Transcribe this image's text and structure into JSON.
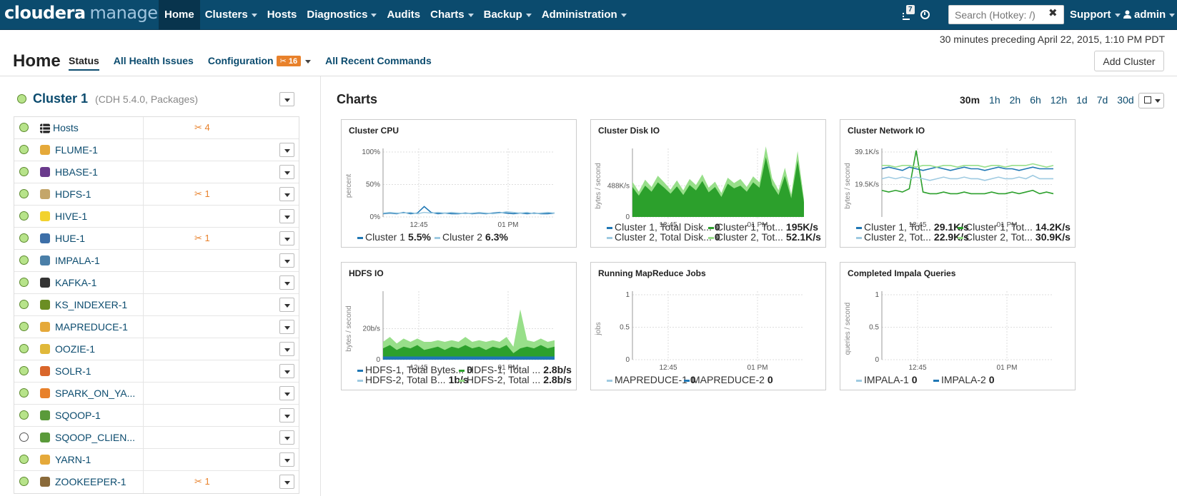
{
  "brand": {
    "part1": "cloudera",
    "part2": "manager"
  },
  "nav": {
    "items": [
      {
        "label": "Home",
        "active": true,
        "caret": false
      },
      {
        "label": "Clusters",
        "caret": true
      },
      {
        "label": "Hosts",
        "caret": false
      },
      {
        "label": "Diagnostics",
        "caret": true
      },
      {
        "label": "Audits",
        "caret": false
      },
      {
        "label": "Charts",
        "caret": true
      },
      {
        "label": "Backup",
        "caret": true
      },
      {
        "label": "Administration",
        "caret": true
      }
    ],
    "notifications_count": "7",
    "search_placeholder": "Search (Hotkey: /)",
    "search_clear": "✖",
    "support_label": "Support",
    "admin_label": "admin"
  },
  "timeline_text": "30 minutes preceding April 22, 2015, 1:10 PM PDT",
  "page": {
    "title": "Home",
    "tabs": {
      "status": "Status",
      "health": "All Health Issues",
      "config": "Configuration",
      "config_badge": "16",
      "commands": "All Recent Commands"
    },
    "add_cluster": "Add Cluster"
  },
  "cluster": {
    "name": "Cluster 1",
    "version": "(CDH 5.4.0, Packages)",
    "hosts": {
      "label": "Hosts",
      "issues": "4"
    },
    "services": [
      {
        "name": "FLUME-1",
        "issues": "",
        "color": "#e5a93a",
        "status": "good"
      },
      {
        "name": "HBASE-1",
        "issues": "",
        "color": "#6a3a8c",
        "status": "good"
      },
      {
        "name": "HDFS-1",
        "issues": "1",
        "color": "#c4a66a",
        "status": "good"
      },
      {
        "name": "HIVE-1",
        "issues": "",
        "color": "#f2d22e",
        "status": "good"
      },
      {
        "name": "HUE-1",
        "issues": "1",
        "color": "#3d6fa8",
        "status": "good"
      },
      {
        "name": "IMPALA-1",
        "issues": "",
        "color": "#4a7fa8",
        "status": "good"
      },
      {
        "name": "KAFKA-1",
        "issues": "",
        "color": "#333333",
        "status": "good"
      },
      {
        "name": "KS_INDEXER-1",
        "issues": "",
        "color": "#6b8e23",
        "status": "good"
      },
      {
        "name": "MAPREDUCE-1",
        "issues": "",
        "color": "#e5a93a",
        "status": "good"
      },
      {
        "name": "OOZIE-1",
        "issues": "",
        "color": "#e0b83a",
        "status": "good"
      },
      {
        "name": "SOLR-1",
        "issues": "",
        "color": "#d9662b",
        "status": "good"
      },
      {
        "name": "SPARK_ON_YA...",
        "issues": "",
        "color": "#e8812b",
        "status": "good"
      },
      {
        "name": "SQOOP-1",
        "issues": "",
        "color": "#5a9a3a",
        "status": "good"
      },
      {
        "name": "SQOOP_CLIEN...",
        "issues": "",
        "color": "#5a9a3a",
        "status": "none"
      },
      {
        "name": "YARN-1",
        "issues": "",
        "color": "#e5a93a",
        "status": "good"
      },
      {
        "name": "ZOOKEEPER-1",
        "issues": "1",
        "color": "#8a6a3a",
        "status": "good"
      }
    ]
  },
  "charts_panel": {
    "title": "Charts",
    "ranges": [
      "30m",
      "1h",
      "2h",
      "6h",
      "12h",
      "1d",
      "7d",
      "30d"
    ],
    "active_range": "30m"
  },
  "chart_data": [
    {
      "type": "line",
      "title": "Cluster CPU",
      "ylabel": "percent",
      "yticks": [
        "100%",
        "50%",
        "0%"
      ],
      "ylim": [
        0,
        100
      ],
      "xticks": [
        "12:45",
        "01 PM"
      ],
      "series": [
        {
          "name": "Cluster 1",
          "value": "5.5%",
          "color": "#1f77b4",
          "values": [
            5,
            6,
            5,
            7,
            5,
            6,
            16,
            7,
            5,
            6,
            5,
            5,
            6,
            5,
            6,
            5,
            6,
            7,
            6,
            5,
            6,
            5,
            6,
            5,
            5,
            6
          ]
        },
        {
          "name": "Cluster 2",
          "value": "6.3%",
          "color": "#9ecae1",
          "values": [
            6,
            7,
            6,
            6,
            7,
            5,
            7,
            6,
            7,
            6,
            7,
            6,
            5,
            6,
            7,
            6,
            5,
            6,
            8,
            7,
            6,
            7,
            5,
            6,
            7,
            6
          ]
        }
      ]
    },
    {
      "type": "area",
      "title": "Cluster Disk IO",
      "ylabel": "bytes / second",
      "yticks": [
        "488K/s",
        "0"
      ],
      "ylim": [
        0,
        976
      ],
      "xticks": [
        "12:45",
        "01 PM"
      ],
      "series": [
        {
          "name": "Cluster 1, Total Disk...",
          "value": "0",
          "color": "#1f77b4",
          "values": []
        },
        {
          "name": "Cluster 1, Tot...",
          "value": "195K/s",
          "color": "#2ca02c",
          "values": [
            450,
            320,
            470,
            380,
            520,
            440,
            350,
            460,
            330,
            480,
            400,
            540,
            370,
            450,
            300,
            500,
            430,
            470,
            380,
            520,
            440,
            900,
            480,
            330,
            620,
            280,
            850,
            220
          ]
        },
        {
          "name": "Cluster 2, Total Disk...",
          "value": "0",
          "color": "#9ecae1",
          "values": []
        },
        {
          "name": "Cluster 2, Tot...",
          "value": "52.1K/s",
          "color": "#98df8a",
          "values": [
            80,
            60,
            90,
            70,
            100,
            80,
            60,
            90,
            70,
            90,
            80,
            100,
            70,
            80,
            60,
            90,
            80,
            100,
            70,
            90,
            80,
            160,
            100,
            70,
            120,
            60,
            140,
            50
          ]
        }
      ]
    },
    {
      "type": "line",
      "title": "Cluster Network IO",
      "ylabel": "bytes / second",
      "yticks": [
        "39.1K/s",
        "19.5K/s"
      ],
      "ylim": [
        0,
        39.1
      ],
      "xticks": [
        "12:45",
        "01 PM"
      ],
      "series": [
        {
          "name": "Cluster 1, Tot...",
          "value": "29.1K/s",
          "color": "#1f77b4",
          "values": [
            29,
            30,
            29,
            28,
            30,
            29,
            28,
            29,
            30,
            29,
            28,
            29,
            30,
            29,
            29,
            28,
            29,
            30,
            29,
            29,
            28,
            29,
            30,
            29,
            29,
            29
          ]
        },
        {
          "name": "Cluster 1, Tot...",
          "value": "14.2K/s",
          "color": "#2ca02c",
          "values": [
            16,
            15,
            16,
            15,
            17,
            40,
            15,
            14,
            14,
            15,
            14,
            14,
            15,
            14,
            14,
            14,
            15,
            14,
            14,
            15,
            14,
            15,
            16,
            14,
            15,
            14
          ]
        },
        {
          "name": "Cluster 2, Tot...",
          "value": "22.9K/s",
          "color": "#9ecae1",
          "values": [
            23,
            24,
            23,
            24,
            23,
            24,
            23,
            22,
            23,
            24,
            23,
            23,
            24,
            23,
            23,
            22,
            23,
            24,
            23,
            23,
            24,
            23,
            25,
            23,
            23,
            23
          ]
        },
        {
          "name": "Cluster 2, Tot...",
          "value": "30.9K/s",
          "color": "#98df8a",
          "values": [
            31,
            31,
            30,
            31,
            31,
            30,
            31,
            31,
            30,
            31,
            31,
            30,
            31,
            31,
            31,
            30,
            31,
            31,
            30,
            31,
            31,
            31,
            32,
            31,
            30,
            31
          ]
        }
      ]
    },
    {
      "type": "area",
      "title": "HDFS IO",
      "ylabel": "bytes / second",
      "yticks": [
        "20b/s",
        "0"
      ],
      "ylim": [
        0,
        40
      ],
      "xticks": [
        "12:45",
        "01 PM"
      ],
      "series": [
        {
          "name": "HDFS-1, Total Bytes...",
          "value": "0",
          "color": "#1f77b4",
          "values": [
            2,
            2,
            2,
            2,
            2,
            2,
            2,
            2,
            2,
            2,
            2,
            2,
            2,
            2,
            2,
            2,
            2,
            2,
            2,
            2,
            2,
            2,
            2,
            2,
            2,
            2
          ]
        },
        {
          "name": "HDFS-1, Total ...",
          "value": "2.8b/s",
          "color": "#2ca02c",
          "values": [
            5,
            7,
            4,
            6,
            5,
            7,
            4,
            5,
            6,
            4,
            6,
            5,
            7,
            5,
            6,
            4,
            6,
            5,
            7,
            2,
            5,
            6,
            5,
            7,
            5,
            6
          ]
        },
        {
          "name": "HDFS-2, Total B...",
          "value": "1b/s",
          "color": "#9ecae1",
          "values": []
        },
        {
          "name": "HDFS-2, Total ...",
          "value": "2.8b/s",
          "color": "#98df8a",
          "values": [
            4,
            5,
            4,
            5,
            4,
            4,
            5,
            4,
            4,
            5,
            4,
            4,
            5,
            4,
            4,
            5,
            4,
            4,
            5,
            4,
            24,
            4,
            4,
            4,
            4,
            4
          ]
        }
      ]
    },
    {
      "type": "line",
      "title": "Running MapReduce Jobs",
      "ylabel": "jobs",
      "yticks": [
        "1",
        "0.5",
        "0"
      ],
      "ylim": [
        0,
        1
      ],
      "xticks": [
        "12:45",
        "01 PM"
      ],
      "series": [
        {
          "name": "MAPREDUCE-1",
          "value": "0",
          "color": "#9ecae1",
          "values": []
        },
        {
          "name": "MAPREDUCE-2",
          "value": "0",
          "color": "#1f77b4",
          "values": []
        }
      ]
    },
    {
      "type": "line",
      "title": "Completed Impala Queries",
      "ylabel": "queries / second",
      "yticks": [
        "1",
        "0.5",
        "0"
      ],
      "ylim": [
        0,
        1
      ],
      "xticks": [
        "12:45",
        "01 PM"
      ],
      "series": [
        {
          "name": "IMPALA-1",
          "value": "0",
          "color": "#9ecae1",
          "values": []
        },
        {
          "name": "IMPALA-2",
          "value": "0",
          "color": "#1f77b4",
          "values": []
        }
      ]
    }
  ]
}
